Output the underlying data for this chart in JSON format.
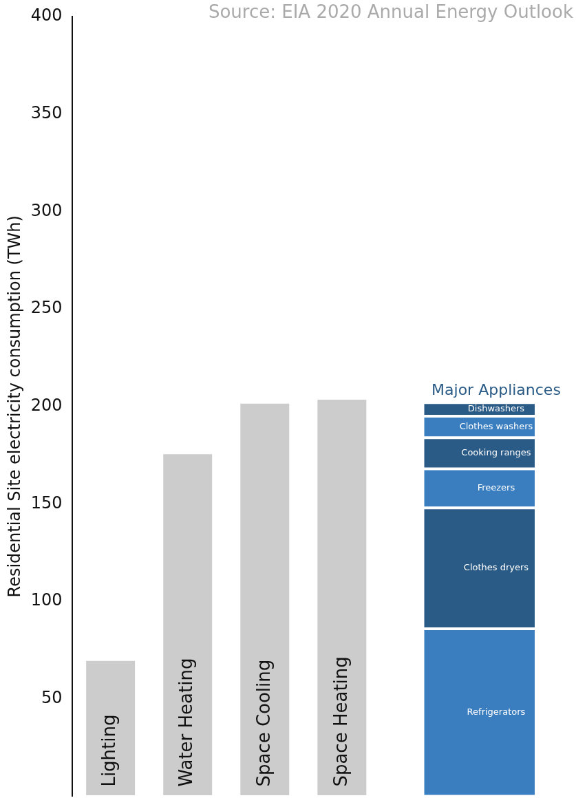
{
  "chart_data": {
    "type": "bar",
    "stacked": true,
    "ylabel": "Residential Site electricity consumption (TWh)",
    "annotations": [
      "Source: EIA 2020 Annual Energy Outlook"
    ],
    "categories": [
      "Lighting",
      "Water Heating",
      "Space Cooling",
      "Space Heating",
      null,
      "Major Appliances"
    ],
    "series": [
      {
        "color": "#cccccc",
        "values": [
          70,
          176,
          202,
          204,
          null,
          null
        ]
      },
      {
        "name": "Refrigerators",
        "color": "#3a7ebf",
        "values": [
          null,
          null,
          null,
          null,
          null,
          86
        ]
      },
      {
        "name": "Clothes dryers",
        "color": "#2a5b87",
        "values": [
          null,
          null,
          null,
          null,
          null,
          62
        ]
      },
      {
        "name": "Freezers",
        "color": "#3a7ebf",
        "values": [
          null,
          null,
          null,
          null,
          null,
          20
        ]
      },
      {
        "name": "Cooking ranges",
        "color": "#2a5b87",
        "values": [
          null,
          null,
          null,
          null,
          null,
          16
        ]
      },
      {
        "name": "Clothes washers",
        "color": "#3a7ebf",
        "values": [
          null,
          null,
          null,
          null,
          null,
          11
        ]
      },
      {
        "name": "Dishwashers",
        "color": "#2a5b87",
        "values": [
          null,
          null,
          null,
          null,
          null,
          7
        ]
      }
    ],
    "ylim": [
      0,
      400
    ],
    "yticks": [
      50,
      100,
      150,
      200,
      250,
      300,
      350,
      400
    ],
    "grid": false,
    "legend": false
  }
}
